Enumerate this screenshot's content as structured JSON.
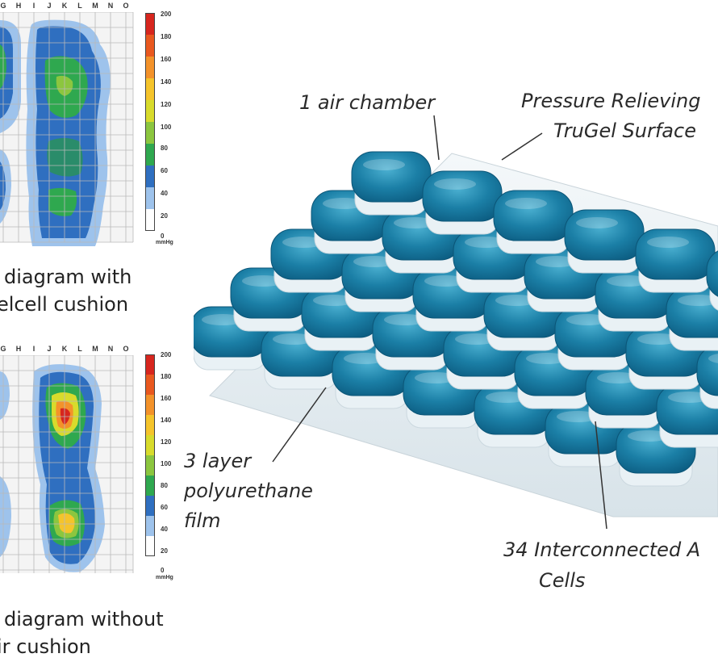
{
  "map_top": {
    "columns": [
      "G",
      "H",
      "I",
      "J",
      "K",
      "L",
      "M",
      "N",
      "O"
    ],
    "scale_ticks": [
      "200",
      "180",
      "160",
      "140",
      "120",
      "100",
      "80",
      "60",
      "40",
      "20",
      "0"
    ],
    "unit": "mmHg",
    "caption": [
      "diagram with",
      "elcell cushion"
    ]
  },
  "map_bottom": {
    "columns": [
      "G",
      "H",
      "I",
      "J",
      "K",
      "L",
      "M",
      "N",
      "O"
    ],
    "scale_ticks": [
      "200",
      "180",
      "160",
      "140",
      "120",
      "100",
      "80",
      "60",
      "40",
      "20",
      "0"
    ],
    "unit": "mmHg",
    "caption": [
      "diagram without",
      "ir cushion"
    ]
  },
  "pressure_colors": {
    "c200": "#d7261e",
    "c180": "#e9581f",
    "c160": "#f3922a",
    "c140": "#f5c42b",
    "c120": "#d8db2c",
    "c100": "#8cc63f",
    "c80": "#2fa84f",
    "c60": "#2a8c6a",
    "c40": "#2f6fc0",
    "c20": "#9ec3ec",
    "c0": "#ffffff"
  },
  "callouts": {
    "air_chamber": "1 air chamber",
    "surface_line1": "Pressure Relieving",
    "surface_line2": "TruGel Surface",
    "film_line1": "3 layer",
    "film_line2": "polyurethane",
    "film_line3": "film",
    "cells_line1": "34 Interconnected A",
    "cells_line2": "Cells"
  },
  "cushion_colors": {
    "cell": "#1b7fa6",
    "cell_dark": "#0d5f84",
    "cell_light": "#4bb0d1",
    "base": "#e6eef2"
  }
}
